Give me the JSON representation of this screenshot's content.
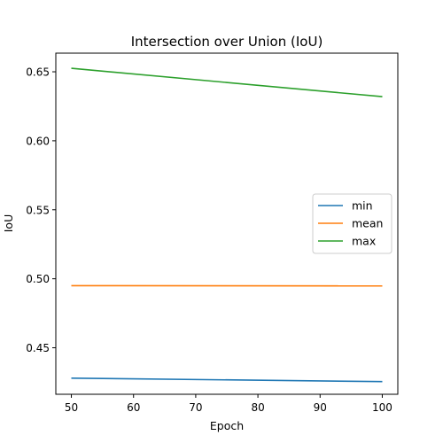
{
  "chart_data": {
    "type": "line",
    "title": "Intersection over Union (IoU)",
    "xlabel": "Epoch",
    "ylabel": "IoU",
    "x": [
      50,
      100
    ],
    "xlim": [
      47.5,
      102.5
    ],
    "ylim": [
      0.4163,
      0.6635
    ],
    "xticks": [
      50,
      60,
      70,
      80,
      90,
      100
    ],
    "yticks": [
      0.45,
      0.5,
      0.55,
      0.6,
      0.65
    ],
    "xtick_labels": [
      "50",
      "60",
      "70",
      "80",
      "90",
      "100"
    ],
    "ytick_labels": [
      "0.45",
      "0.50",
      "0.55",
      "0.60",
      "0.65"
    ],
    "grid": false,
    "legend_position": "center-right",
    "series": [
      {
        "name": "min",
        "color": "#1f77b4",
        "values": [
          0.428,
          0.4255
        ]
      },
      {
        "name": "mean",
        "color": "#ff7f0e",
        "values": [
          0.495,
          0.4948
        ]
      },
      {
        "name": "max",
        "color": "#2ca02c",
        "values": [
          0.6525,
          0.632
        ]
      }
    ]
  }
}
